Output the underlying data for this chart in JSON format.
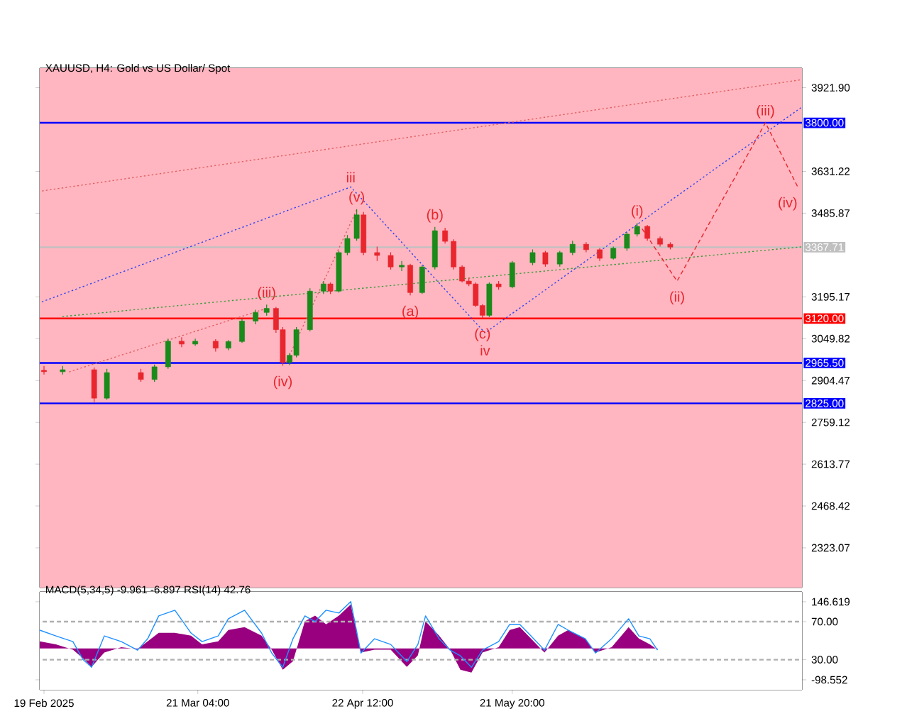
{
  "chart_data": [
    {
      "type": "candlestick",
      "title": "XAUUSD, H4:  Gold vs US Dollar/ Spot",
      "x": [
        "2025-02-19T00:00",
        "2025-02-22T16:00",
        "2025-02-28T20:00",
        "2025-03-03T08:00",
        "2025-03-10T00:00",
        "2025-03-12T16:00",
        "2025-03-15T08:00",
        "2025-03-18T00:00",
        "2025-03-20T16:00",
        "2025-03-24T16:00",
        "2025-03-27T04:00",
        "2025-03-29T20:00",
        "2025-04-01T12:00",
        "2025-04-03T16:00",
        "2025-04-05T12:00",
        "2025-04-06T20:00",
        "2025-04-08T04:00",
        "2025-04-09T12:00",
        "2025-04-12T04:00",
        "2025-04-14T20:00",
        "2025-04-16T04:00",
        "2025-04-17T20:00",
        "2025-04-19T12:00",
        "2025-04-21T08:00",
        "2025-04-22T16:00",
        "2025-04-25T08:00",
        "2025-04-28T00:00",
        "2025-04-30T04:00",
        "2025-05-01T20:00",
        "2025-05-04T04:00",
        "2025-05-06T16:00",
        "2025-05-08T16:00",
        "2025-05-10T08:00",
        "2025-05-12T00:00",
        "2025-05-13T08:00",
        "2025-05-14T16:00",
        "2025-05-16T00:00",
        "2025-05-17T08:00",
        "2025-05-19T04:00",
        "2025-05-21T20:00",
        "2025-05-25T20:00",
        "2025-05-28T08:00",
        "2025-05-31T04:00",
        "2025-06-02T16:00",
        "2025-06-05T08:00",
        "2025-06-08T00:00",
        "2025-06-10T16:00",
        "2025-06-13T08:00",
        "2025-06-15T08:00",
        "2025-06-17T08:00",
        "2025-06-19T20:00",
        "2025-06-21T20:00"
      ],
      "ohlc": [
        [
          2940,
          2955,
          2925,
          2935
        ],
        [
          2935,
          2955,
          2925,
          2942
        ],
        [
          2942,
          2950,
          2830,
          2843
        ],
        [
          2843,
          2945,
          2838,
          2932
        ],
        [
          2932,
          2945,
          2900,
          2908
        ],
        [
          2908,
          2960,
          2900,
          2952
        ],
        [
          2952,
          3050,
          2945,
          3041
        ],
        [
          3041,
          3055,
          3020,
          3031
        ],
        [
          3031,
          3050,
          3025,
          3041
        ],
        [
          3041,
          3048,
          3005,
          3017
        ],
        [
          3017,
          3045,
          3010,
          3040
        ],
        [
          3040,
          3120,
          3035,
          3111
        ],
        [
          3111,
          3150,
          3100,
          3141
        ],
        [
          3141,
          3168,
          3130,
          3155
        ],
        [
          3155,
          3160,
          3070,
          3081
        ],
        [
          3081,
          3090,
          2956,
          2967
        ],
        [
          2967,
          3000,
          2958,
          2992
        ],
        [
          2992,
          3090,
          2985,
          3081
        ],
        [
          3081,
          3225,
          3075,
          3215
        ],
        [
          3215,
          3250,
          3205,
          3240
        ],
        [
          3240,
          3245,
          3205,
          3215
        ],
        [
          3215,
          3355,
          3210,
          3349
        ],
        [
          3349,
          3410,
          3340,
          3398
        ],
        [
          3398,
          3500,
          3390,
          3480
        ],
        [
          3480,
          3490,
          3340,
          3349
        ],
        [
          3349,
          3370,
          3320,
          3339
        ],
        [
          3339,
          3350,
          3290,
          3299
        ],
        [
          3299,
          3320,
          3285,
          3305
        ],
        [
          3305,
          3310,
          3200,
          3210
        ],
        [
          3210,
          3305,
          3205,
          3299
        ],
        [
          3299,
          3438,
          3290,
          3425
        ],
        [
          3425,
          3435,
          3380,
          3388
        ],
        [
          3388,
          3395,
          3290,
          3299
        ],
        [
          3299,
          3305,
          3245,
          3250
        ],
        [
          3250,
          3262,
          3232,
          3240
        ],
        [
          3240,
          3245,
          3160,
          3165
        ],
        [
          3165,
          3170,
          3122,
          3131
        ],
        [
          3131,
          3245,
          3125,
          3240
        ],
        [
          3240,
          3250,
          3220,
          3230
        ],
        [
          3230,
          3320,
          3225,
          3314
        ],
        [
          3314,
          3360,
          3305,
          3349
        ],
        [
          3349,
          3355,
          3300,
          3309
        ],
        [
          3309,
          3355,
          3300,
          3349
        ],
        [
          3349,
          3390,
          3340,
          3378
        ],
        [
          3378,
          3385,
          3350,
          3359
        ],
        [
          3359,
          3365,
          3320,
          3329
        ],
        [
          3329,
          3370,
          3325,
          3364
        ],
        [
          3364,
          3420,
          3355,
          3413
        ],
        [
          3413,
          3452,
          3405,
          3440
        ],
        [
          3440,
          3445,
          3390,
          3398
        ],
        [
          3398,
          3405,
          3370,
          3378
        ],
        [
          3378,
          3385,
          3360,
          3368
        ]
      ],
      "colors": [
        "#e8262d",
        "#1a8a1a",
        "#e8262d",
        "#1a8a1a",
        "#e8262d",
        "#1a8a1a",
        "#1a8a1a",
        "#e8262d",
        "#1a8a1a",
        "#e8262d",
        "#1a8a1a",
        "#1a8a1a",
        "#1a8a1a",
        "#1a8a1a",
        "#e8262d",
        "#e8262d",
        "#1a8a1a",
        "#1a8a1a",
        "#1a8a1a",
        "#1a8a1a",
        "#e8262d",
        "#1a8a1a",
        "#1a8a1a",
        "#1a8a1a",
        "#e8262d",
        "#e8262d",
        "#e8262d",
        "#1a8a1a",
        "#e8262d",
        "#1a8a1a",
        "#1a8a1a",
        "#e8262d",
        "#e8262d",
        "#e8262d",
        "#e8262d",
        "#e8262d",
        "#e8262d",
        "#1a8a1a",
        "#e8262d",
        "#1a8a1a",
        "#1a8a1a",
        "#e8262d",
        "#1a8a1a",
        "#1a8a1a",
        "#e8262d",
        "#e8262d",
        "#1a8a1a",
        "#1a8a1a",
        "#1a8a1a",
        "#e8262d",
        "#e8262d",
        "#e8262d"
      ],
      "series": [
        {
          "type": "line",
          "color": "#e06060",
          "line_style": "dotted",
          "x": [
            "2025-02-18T04:00",
            "2025-07-17T16:00"
          ],
          "values": [
            3562,
            3950
          ]
        },
        {
          "type": "line",
          "color": "#3344ee",
          "line_style": "dotted",
          "x": [
            "2025-02-18T04:00",
            "2025-04-20T04:00",
            "2025-05-16T12:00"
          ],
          "values": [
            3175,
            3577,
            3070
          ]
        },
        {
          "type": "line",
          "color": "#3344ee",
          "line_style": "dotted",
          "x": [
            "2025-05-16T12:00",
            "2025-07-17T16:00"
          ],
          "values": [
            3070,
            3855
          ]
        },
        {
          "type": "line",
          "color": "#3a9a3a",
          "line_style": "dotted",
          "x": [
            "2025-02-22T04:00",
            "2025-07-17T16:00"
          ],
          "values": [
            3126,
            3369
          ]
        },
        {
          "type": "line",
          "color": "#e06060",
          "line_style": "dotted",
          "x": [
            "2025-02-23T12:00",
            "2025-04-03T16:00"
          ],
          "values": [
            2932,
            3155
          ]
        },
        {
          "type": "line",
          "color": "#e06060",
          "line_style": "dotted",
          "x": [
            "2025-04-07T08:00",
            "2025-04-21T08:00"
          ],
          "values": [
            2960,
            3498
          ]
        },
        {
          "type": "line",
          "color": "#e8262d",
          "line_style": "dashed",
          "x": [
            "2025-06-16T00:00",
            "2025-06-23T04:00",
            "2025-07-10T12:00",
            "2025-07-16T20:00"
          ],
          "values": [
            3440,
            3250,
            3800,
            3577
          ]
        }
      ],
      "xlim": [
        "2025-02-18T04:00",
        "2025-07-17T16:00"
      ],
      "ylim": [
        2185,
        3990
      ],
      "yticks": [
        {
          "value": 3921.9,
          "label": "3921.90"
        },
        {
          "value": 3631.22,
          "label": "3631.22"
        },
        {
          "value": 3485.87,
          "label": "3485.87"
        },
        {
          "value": 3195.17,
          "label": "3195.17"
        },
        {
          "value": 3049.82,
          "label": "3049.82"
        },
        {
          "value": 2904.47,
          "label": "2904.47"
        },
        {
          "value": 2759.12,
          "label": "2759.12"
        },
        {
          "value": 2613.77,
          "label": "2613.77"
        },
        {
          "value": 2468.42,
          "label": "2468.42"
        },
        {
          "value": 2323.07,
          "label": "2323.07"
        }
      ],
      "tick_labels": "y",
      "ref_lines": [
        {
          "axis": "y",
          "value": 3800,
          "label": "3800.00",
          "color": "#0000ff"
        },
        {
          "axis": "y",
          "value": 3367.71,
          "label": "3367.71",
          "color": "#c0c0c0"
        },
        {
          "axis": "y",
          "value": 3120,
          "label": "3120.00",
          "color": "#ff0000"
        },
        {
          "axis": "y",
          "value": 2965.5,
          "label": "2965.50",
          "color": "#0000ff"
        },
        {
          "axis": "y",
          "value": 2825,
          "label": "2825.00",
          "color": "#0000ff"
        }
      ],
      "annotations": [
        {
          "text": "(iii)",
          "x": "2025-04-03T16:00",
          "y": 3168
        },
        {
          "text": "(iv)",
          "x": "2025-04-06T20:00",
          "y": 2956
        },
        {
          "text": "iii",
          "x": "2025-04-20T04:00",
          "y": 3577
        },
        {
          "text": "(v)",
          "x": "2025-04-21T08:00",
          "y": 3500
        },
        {
          "text": "(a)",
          "x": "2025-05-01T20:00",
          "y": 3200
        },
        {
          "text": "(b)",
          "x": "2025-05-06T16:00",
          "y": 3438
        },
        {
          "text": "(c)",
          "x": "2025-05-16T00:00",
          "y": 3122
        },
        {
          "text": "iv",
          "x": "2025-05-16T12:00",
          "y": 3070
        },
        {
          "text": "(i)",
          "x": "2025-06-15T08:00",
          "y": 3452
        },
        {
          "text": "(ii)",
          "x": "2025-06-23T04:00",
          "y": 3250
        },
        {
          "text": "(iii)",
          "x": "2025-07-10T12:00",
          "y": 3800
        },
        {
          "text": "(iv)",
          "x": "2025-07-16T20:00",
          "y": 3577
        }
      ]
    },
    {
      "type": "area",
      "title": "MACD(5,34,5) -9.961 -6.897 RSI(14) 42.76",
      "series": [
        {
          "type": "area",
          "color": "#990080",
          "x": [
            "2025-02-18T04:00",
            "2025-02-21T08:00",
            "2025-02-24T16:00",
            "2025-02-26T16:00",
            "2025-02-28T08:00",
            "2025-03-02T20:00",
            "2025-03-06T04:00",
            "2025-03-09T08:00",
            "2025-03-11T08:00",
            "2025-03-13T12:00",
            "2025-03-16T16:00",
            "2025-03-19T20:00",
            "2025-03-22T00:00",
            "2025-03-25T04:00",
            "2025-03-27T04:00",
            "2025-03-30T08:00",
            "2025-04-02T16:00",
            "2025-04-04T16:00",
            "2025-04-06T20:00",
            "2025-04-08T20:00",
            "2025-04-11T04:00",
            "2025-04-13T04:00",
            "2025-04-15T08:00",
            "2025-04-17T20:00",
            "2025-04-20T04:00",
            "2025-04-22T04:00",
            "2025-04-24T20:00",
            "2025-04-28T00:00",
            "2025-05-01T04:00",
            "2025-05-03T08:00",
            "2025-05-04T20:00",
            "2025-05-07T12:00",
            "2025-05-09T16:00",
            "2025-05-11T16:00",
            "2025-05-13T20:00",
            "2025-05-16T00:00",
            "2025-05-19T04:00",
            "2025-05-21T08:00",
            "2025-05-23T08:00",
            "2025-05-25T12:00",
            "2025-05-28T04:00",
            "2025-05-30T20:00",
            "2025-06-01T20:00",
            "2025-06-05T04:00",
            "2025-06-07T04:00",
            "2025-06-10T08:00",
            "2025-06-13T16:00",
            "2025-06-15T16:00",
            "2025-06-17T20:00",
            "2025-06-19T08:00"
          ],
          "values": [
            22,
            13,
            -4,
            -31,
            -58,
            -13,
            4,
            -2,
            22,
            49,
            49,
            40,
            13,
            22,
            58,
            67,
            40,
            -4,
            -67,
            -40,
            85,
            103,
            76,
            103,
            138,
            -13,
            -4,
            -4,
            -58,
            -22,
            85,
            40,
            -4,
            -67,
            -76,
            -13,
            4,
            58,
            67,
            31,
            -13,
            40,
            58,
            31,
            -13,
            4,
            67,
            31,
            13,
            -4
          ]
        },
        {
          "type": "line",
          "axis": "y2",
          "color": "#1e90ff",
          "x": [
            "2025-02-18T04:00",
            "2025-02-21T08:00",
            "2025-02-24T16:00",
            "2025-02-26T16:00",
            "2025-02-28T08:00",
            "2025-03-02T20:00",
            "2025-03-06T04:00",
            "2025-03-09T08:00",
            "2025-03-11T08:00",
            "2025-03-13T12:00",
            "2025-03-16T16:00",
            "2025-03-19T20:00",
            "2025-03-22T00:00",
            "2025-03-25T04:00",
            "2025-03-27T04:00",
            "2025-03-30T08:00",
            "2025-04-02T16:00",
            "2025-04-04T16:00",
            "2025-04-06T20:00",
            "2025-04-08T20:00",
            "2025-04-11T04:00",
            "2025-04-13T04:00",
            "2025-04-15T08:00",
            "2025-04-17T20:00",
            "2025-04-20T04:00",
            "2025-04-22T04:00",
            "2025-04-24T20:00",
            "2025-04-28T00:00",
            "2025-05-01T04:00",
            "2025-05-03T08:00",
            "2025-05-04T20:00",
            "2025-05-07T12:00",
            "2025-05-09T16:00",
            "2025-05-11T16:00",
            "2025-05-13T20:00",
            "2025-05-16T00:00",
            "2025-05-19T04:00",
            "2025-05-21T08:00",
            "2025-05-23T08:00",
            "2025-05-25T12:00",
            "2025-05-28T04:00",
            "2025-05-30T20:00",
            "2025-06-01T20:00",
            "2025-06-05T04:00",
            "2025-06-07T04:00",
            "2025-06-10T08:00",
            "2025-06-13T16:00",
            "2025-06-15T16:00",
            "2025-06-17T20:00",
            "2025-06-19T08:00"
          ],
          "values": [
            61,
            55,
            49,
            30,
            22,
            55,
            49,
            40,
            52,
            76,
            82,
            58,
            49,
            55,
            73,
            82,
            58,
            37,
            22,
            52,
            76,
            70,
            82,
            79,
            91,
            37,
            52,
            46,
            28,
            46,
            76,
            52,
            40,
            34,
            22,
            40,
            49,
            67,
            67,
            55,
            40,
            67,
            61,
            52,
            37,
            52,
            73,
            55,
            52,
            40
          ]
        }
      ],
      "xlim": [
        "2025-02-18T04:00",
        "2025-07-17T16:00"
      ],
      "ylim": [
        -129.8,
        177.8
      ],
      "yticks": [
        146.619,
        -98.552
      ],
      "y2lim": [
        -1.6,
        101.3
      ],
      "y2ticks": [
        {
          "value": 70,
          "label": "70.00"
        },
        {
          "value": 30,
          "label": "30.00"
        }
      ],
      "xticks": [
        {
          "value": "2025-02-19",
          "label": "19 Feb 2025"
        },
        {
          "value": "2025-03-21T04:00",
          "label": "21 Mar 04:00"
        },
        {
          "value": "2025-04-22T12:00",
          "label": "22 Apr 12:00"
        },
        {
          "value": "2025-05-21T20:00",
          "label": "21 May 20:00"
        }
      ],
      "ref_lines": [
        {
          "axis": "y2",
          "value": 70,
          "color": "#b0b0b0",
          "line_style": "dashed"
        },
        {
          "axis": "y2",
          "value": 30,
          "color": "#b0b0b0",
          "line_style": "dashed"
        }
      ]
    }
  ]
}
